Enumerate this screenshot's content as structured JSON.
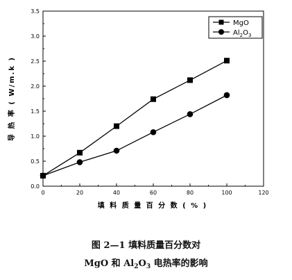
{
  "chart_data": {
    "type": "line",
    "title": "",
    "xlabel": "填 料 质 量 百 分 数 ( % )",
    "ylabel": "导 热 率 ( W/m.k )",
    "xlim": [
      0,
      120
    ],
    "ylim": [
      0,
      3.5
    ],
    "x_ticks": [
      "0",
      "20",
      "40",
      "60",
      "80",
      "100",
      "120"
    ],
    "y_ticks": [
      "0.0",
      "0.5",
      "1.0",
      "1.5",
      "2.0",
      "2.5",
      "3.0",
      "3.5"
    ],
    "legend_position": "top-right",
    "series": [
      {
        "name": "MgO",
        "marker": "square",
        "x": [
          0,
          20,
          40,
          60,
          80,
          100
        ],
        "y": [
          0.21,
          0.67,
          1.2,
          1.74,
          2.12,
          2.51
        ]
      },
      {
        "name": "Al2O3",
        "marker": "circle",
        "x": [
          0,
          20,
          40,
          60,
          80,
          100
        ],
        "y": [
          0.21,
          0.48,
          0.71,
          1.08,
          1.44,
          1.82
        ]
      }
    ],
    "legend": {
      "mgo": "MgO",
      "al_base": "Al",
      "al_sub1": "2",
      "al_mid": "O",
      "al_sub2": "3"
    }
  },
  "caption": {
    "line1": "图 2—1    填料质量百分数对",
    "line2_mgo": "MgO",
    "line2_and": " 和 ",
    "line2_al": "Al",
    "line2_al_sub1": "2",
    "line2_o": "O",
    "line2_o_sub2": "3",
    "line2_rest": " 电热率的影响"
  }
}
